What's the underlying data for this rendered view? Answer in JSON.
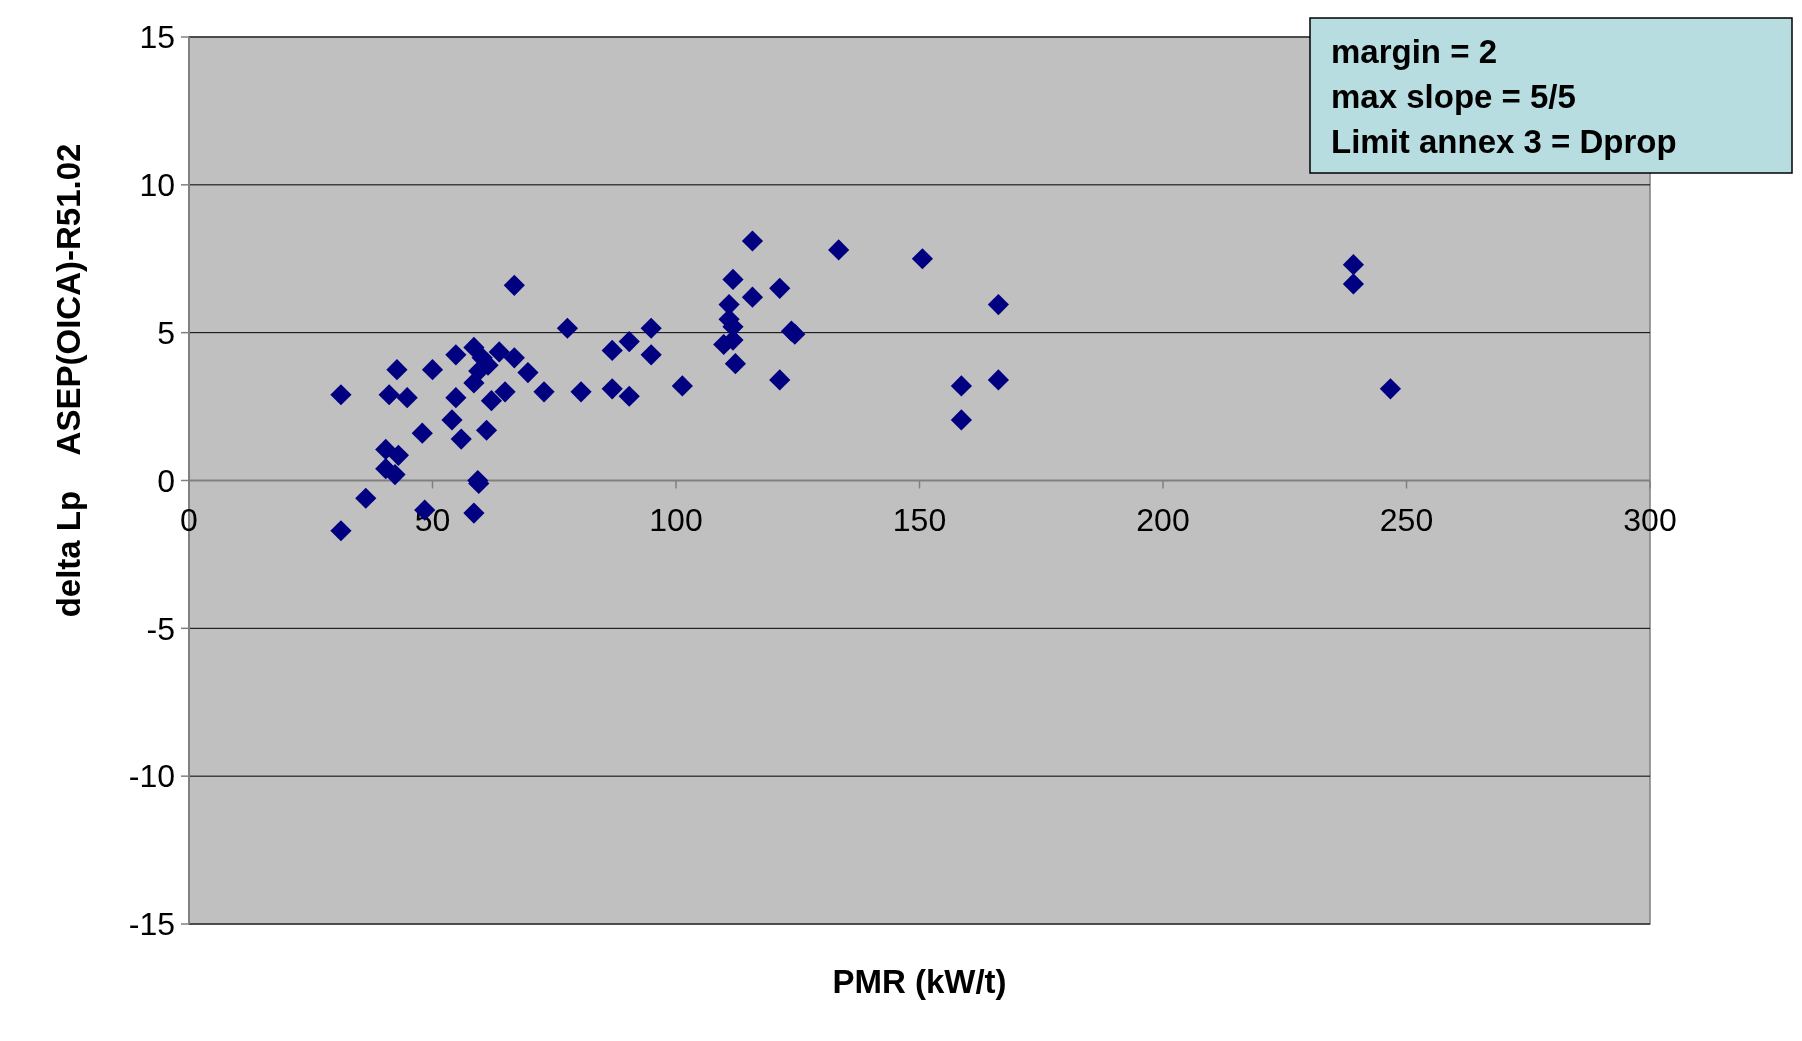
{
  "chart_data": {
    "type": "scatter",
    "xlabel": "PMR (kW/t)",
    "ylabel": "delta Lp    ASEP(OICA)-R51.02",
    "annotations": [
      "margin = 2",
      "max slope = 5/5",
      "Limit annex 3 = Dprop"
    ],
    "xlim": [
      0,
      300
    ],
    "xticks": [
      0,
      50,
      100,
      150,
      200,
      250,
      300
    ],
    "ylim": [
      -15,
      15
    ],
    "yticks": [
      -15,
      -10,
      -5,
      0,
      5,
      10,
      15
    ],
    "grid": "y",
    "marker": "diamond",
    "series": [
      {
        "color": "#000080",
        "x": [
          31.2,
          31.2,
          36.3,
          40.4,
          40.4,
          41.1,
          42.3,
          42.7,
          43.0,
          44.8,
          47.9,
          48.4,
          50.0,
          54.0,
          54.8,
          54.8,
          55.9,
          58.5,
          58.5,
          58.5,
          59.3,
          59.5,
          59.5,
          60.2,
          61.4,
          61.1,
          62.1,
          63.7,
          64.9,
          66.8,
          66.8,
          69.6,
          72.9,
          77.7,
          80.5,
          86.9,
          86.9,
          90.4,
          90.4,
          94.9,
          94.9,
          101.3,
          109.8,
          110.9,
          110.9,
          111.7,
          111.7,
          111.7,
          112.2,
          115.7,
          115.7,
          121.3,
          121.3,
          123.7,
          124.4,
          133.4,
          150.6,
          158.6,
          158.6,
          166.2,
          166.2,
          239.1,
          239.1,
          246.7
        ],
        "values": [
          2.9,
          -1.7,
          -0.6,
          1.05,
          0.4,
          2.9,
          0.2,
          3.75,
          0.85,
          2.8,
          1.6,
          -1.0,
          3.75,
          2.05,
          4.25,
          2.8,
          1.4,
          4.5,
          3.3,
          -1.1,
          0,
          3.7,
          -0.1,
          4.15,
          3.9,
          1.7,
          2.7,
          4.35,
          3.0,
          4.15,
          6.6,
          3.65,
          3.0,
          5.15,
          3.0,
          4.4,
          3.1,
          4.7,
          2.85,
          5.15,
          4.25,
          3.2,
          4.6,
          5.95,
          5.45,
          6.8,
          5.2,
          4.75,
          3.95,
          8.1,
          6.2,
          6.5,
          3.4,
          5.05,
          4.95,
          7.8,
          7.5,
          3.2,
          2.05,
          5.95,
          3.4,
          7.3,
          6.65,
          3.1
        ]
      }
    ]
  }
}
